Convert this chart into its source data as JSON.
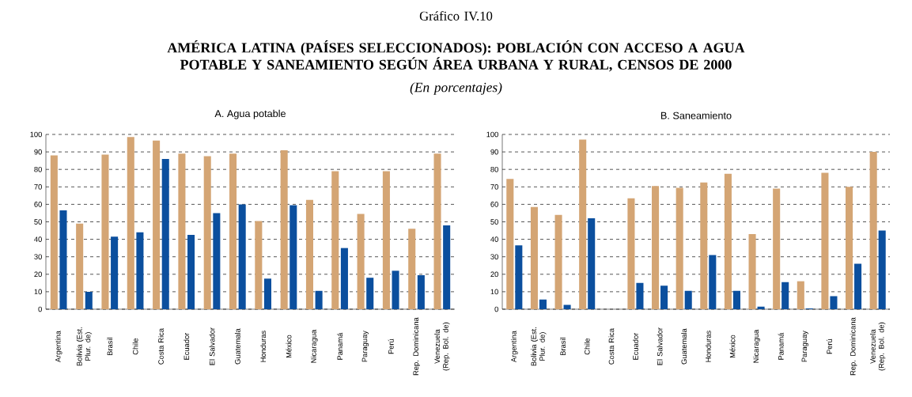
{
  "chart_data": [
    {
      "type": "bar",
      "title": "A. Agua potable",
      "annotations": [
        "Gráfico IV.10",
        "AMÉRICA LATINA (PAÍSES SELECCIONADOS): POBLACIÓN CON ACCESO A AGUA POTABLE Y SANEAMIENTO SEGÚN ÁREA URBANA Y RURAL, CENSOS DE 2000",
        "*(En porcentajes)*"
      ],
      "categories": [
        "Argentina",
        "Bolivia (Est. Plur. de)",
        "Brasil",
        "Chile",
        "Costa Rica",
        "Ecuador",
        "El Salvador",
        "Guatemala",
        "Honduras",
        "México",
        "Nicaragua",
        "Panamá",
        "Paraguay",
        "Perú",
        "Rep. Dominicana",
        "Venezuela (Rep. Bol. de)"
      ],
      "series": [
        {
          "color": "#d4a574",
          "values": [
            88,
            49,
            88.5,
            98.5,
            96.5,
            89,
            87.5,
            89,
            50.5,
            91,
            62.5,
            79,
            54.5,
            79,
            46,
            89
          ]
        },
        {
          "color": "#0b4f9e",
          "values": [
            56.5,
            10,
            41.5,
            44,
            86,
            42.5,
            55,
            60,
            17.5,
            59.5,
            10.5,
            35,
            18,
            22,
            19.5,
            48
          ]
        }
      ],
      "ylim": [
        0,
        100
      ],
      "yticks": [
        0,
        10,
        20,
        30,
        40,
        50,
        60,
        70,
        80,
        90,
        100
      ],
      "grid": "y"
    },
    {
      "type": "bar",
      "title": "B. Saneamiento",
      "categories": [
        "Argentina",
        "Bolivia (Est. Plur. de)",
        "Brasil",
        "Chile",
        "Costa Rica",
        "Ecuador",
        "El Salvador",
        "Guatemala",
        "Honduras",
        "México",
        "Nicaragua",
        "Panamá",
        "Paraguay",
        "Perú",
        "Rep. Dominicana",
        "Venezuela (Rep. Bol. de)"
      ],
      "series": [
        {
          "color": "#d4a574",
          "values": [
            74.5,
            58.5,
            54,
            97,
            null,
            63.5,
            70.5,
            69.5,
            72.5,
            77.5,
            43,
            69,
            16,
            78,
            70,
            90
          ]
        },
        {
          "color": "#0b4f9e",
          "values": [
            36.5,
            5.5,
            2.5,
            52,
            null,
            15,
            13.5,
            10.5,
            31,
            10.5,
            1.5,
            15.5,
            0.5,
            7.5,
            26,
            45
          ]
        }
      ],
      "ylim": [
        0,
        100
      ],
      "yticks": [
        0,
        10,
        20,
        30,
        40,
        50,
        60,
        70,
        80,
        90,
        100
      ],
      "grid": "y"
    }
  ]
}
